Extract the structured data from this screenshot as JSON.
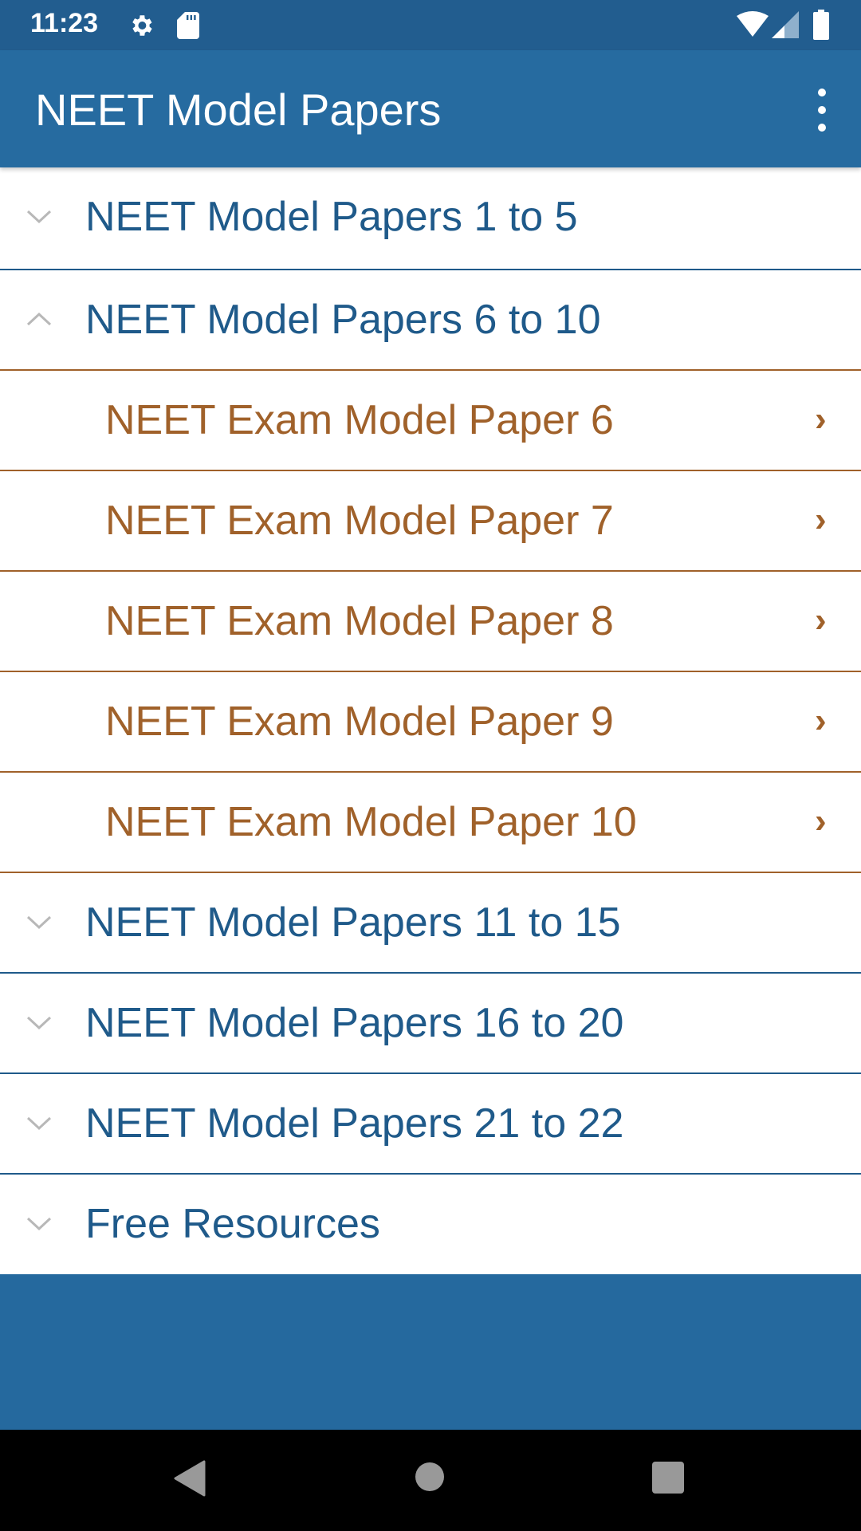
{
  "status_bar": {
    "time": "11:23",
    "icons": [
      "gear-icon",
      "sd-card-icon",
      "wifi-icon",
      "signal-icon",
      "battery-icon"
    ]
  },
  "app_bar": {
    "title": "NEET Model Papers",
    "menu_icon": "more-vert-icon"
  },
  "colors": {
    "primary": "#266ba0",
    "status_bar": "#225d8f",
    "group_text": "#1f5a8a",
    "child_text": "#a0612a"
  },
  "groups": [
    {
      "label": "NEET Model Papers 1 to 5",
      "expanded": false
    },
    {
      "label": "NEET Model Papers 6 to 10",
      "expanded": true,
      "children": [
        {
          "label": "NEET Exam Model Paper 6"
        },
        {
          "label": "NEET Exam Model Paper 7"
        },
        {
          "label": "NEET Exam Model Paper 8"
        },
        {
          "label": "NEET Exam Model Paper 9"
        },
        {
          "label": "NEET Exam Model Paper 10"
        }
      ]
    },
    {
      "label": "NEET Model Papers 11 to 15",
      "expanded": false
    },
    {
      "label": "NEET Model Papers 16 to 20",
      "expanded": false
    },
    {
      "label": "NEET Model Papers 21 to 22",
      "expanded": false
    },
    {
      "label": "Free Resources",
      "expanded": false
    }
  ],
  "child_arrow": "›"
}
